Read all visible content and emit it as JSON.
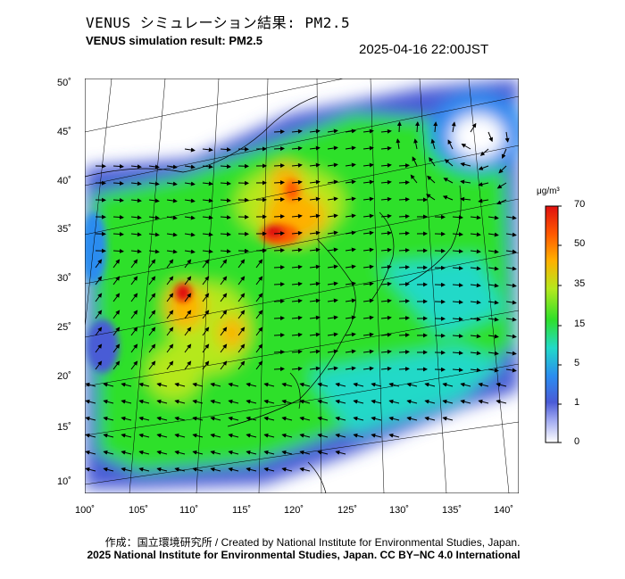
{
  "header": {
    "title_jp": "VENUS シミュレーション結果: PM2.5",
    "title_en": "VENUS simulation result: PM2.5",
    "timestamp": "2025-04-16 22:00JST"
  },
  "colorbar": {
    "unit": "μg/m³",
    "ticks": [
      "70",
      "50",
      "35",
      "15",
      "5",
      "1",
      "0"
    ],
    "colors": [
      "#ffffff",
      "#4a5bd6",
      "#2b8cf0",
      "#22d9c8",
      "#2fe02a",
      "#b5e81e",
      "#ffb000",
      "#ff5a00",
      "#e01010"
    ]
  },
  "axes": {
    "lat_labels": [
      "50˚",
      "45˚",
      "40˚",
      "35˚",
      "30˚",
      "25˚",
      "20˚",
      "15˚",
      "10˚"
    ],
    "lon_labels": [
      "100˚",
      "105˚",
      "110˚",
      "115˚",
      "120˚",
      "125˚",
      "130˚",
      "135˚",
      "140˚"
    ]
  },
  "map": {
    "region": "East Asia",
    "field": "PM2.5 concentration with wind vectors",
    "colors": {
      "ocean": "#ffffff",
      "low": "#4a5bd6",
      "background_field": "#2fe02a",
      "high": "#ff5a00",
      "peak": "#e01010"
    }
  },
  "footer": {
    "credit": "作成：国立環境研究所 / Created by National Institute for Environmental Studies, Japan.",
    "license": "2025 National Institute for Environmental Studies, Japan. CC BY−NC 4.0 International"
  }
}
